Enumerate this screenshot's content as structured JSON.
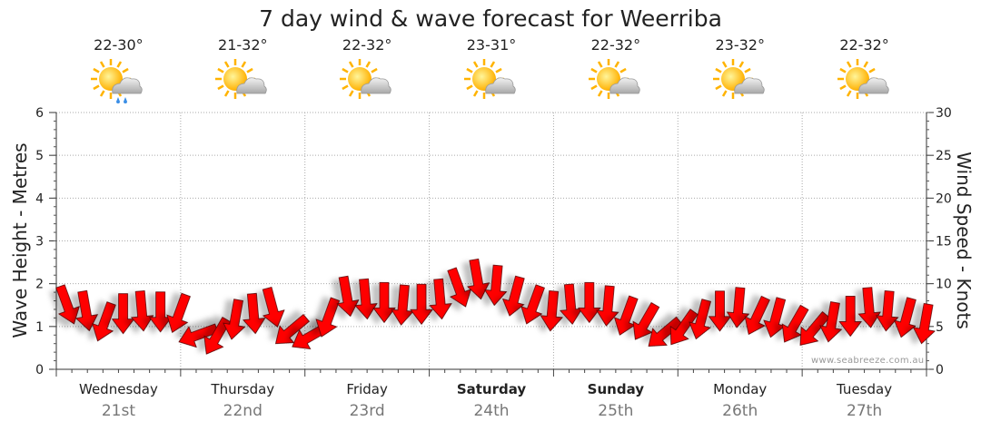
{
  "title": "7 day wind & wave forecast for Weerriba",
  "watermark": "www.seabreeze.com.au",
  "days": [
    {
      "name": "Wednesday",
      "date": "21st",
      "temp": "22-30°",
      "icon": "sun-cloud-rain-icon",
      "bold": false
    },
    {
      "name": "Thursday",
      "date": "22nd",
      "temp": "21-32°",
      "icon": "sun-cloud-icon",
      "bold": false
    },
    {
      "name": "Friday",
      "date": "23rd",
      "temp": "22-32°",
      "icon": "sun-cloud-icon",
      "bold": false
    },
    {
      "name": "Saturday",
      "date": "24th",
      "temp": "23-31°",
      "icon": "sun-cloud-icon",
      "bold": true
    },
    {
      "name": "Sunday",
      "date": "25th",
      "temp": "22-32°",
      "icon": "sun-cloud-icon",
      "bold": true
    },
    {
      "name": "Monday",
      "date": "26th",
      "temp": "23-32°",
      "icon": "sun-cloud-icon",
      "bold": false
    },
    {
      "name": "Tuesday",
      "date": "27th",
      "temp": "22-32°",
      "icon": "sun-cloud-icon",
      "bold": false
    }
  ],
  "chart_data": {
    "type": "line",
    "left_axis": {
      "label": "Wave Height - Metres",
      "min": 0,
      "max": 6,
      "ticks": [
        0,
        1,
        2,
        3,
        4,
        5,
        6
      ]
    },
    "right_axis": {
      "label": "Wind Speed - Knots",
      "min": 0,
      "max": 30,
      "ticks": [
        0,
        5,
        10,
        15,
        20,
        25,
        30
      ]
    },
    "grid": true,
    "series": [
      {
        "name": "Wind Speed",
        "color": "#ff0000",
        "marker": "arrow",
        "x_days": [
          0.0,
          0.15,
          0.3,
          0.45,
          0.6,
          0.75,
          0.9,
          1.05,
          1.2,
          1.35,
          1.5,
          1.65,
          1.8,
          1.95,
          2.1,
          2.25,
          2.4,
          2.55,
          2.7,
          2.85,
          3.0,
          3.15,
          3.3,
          3.45,
          3.6,
          3.75,
          3.9,
          4.05,
          4.2,
          4.35,
          4.5,
          4.65,
          4.8,
          4.95,
          5.1,
          5.25,
          5.4,
          5.55,
          5.7,
          5.85,
          6.0,
          6.15,
          6.3,
          6.45,
          6.6,
          6.75,
          6.9
        ],
        "values": [
          7.5,
          6.8,
          5.5,
          6.5,
          6.8,
          6.7,
          6.5,
          4.0,
          3.8,
          5.8,
          6.5,
          7.2,
          4.5,
          3.8,
          6.0,
          8.5,
          8.2,
          7.8,
          7.5,
          7.6,
          8.2,
          9.5,
          10.5,
          9.8,
          8.5,
          7.5,
          6.8,
          7.6,
          7.8,
          7.4,
          6.2,
          5.5,
          4.2,
          4.8,
          5.8,
          6.8,
          7.2,
          6.2,
          6.0,
          5.2,
          4.6,
          5.5,
          6.2,
          7.2,
          6.8,
          6.0,
          5.3
        ],
        "directions_deg": [
          160,
          170,
          200,
          180,
          175,
          180,
          200,
          250,
          210,
          190,
          175,
          165,
          230,
          240,
          200,
          170,
          175,
          180,
          185,
          180,
          175,
          160,
          170,
          185,
          195,
          200,
          185,
          175,
          180,
          185,
          200,
          210,
          230,
          215,
          195,
          180,
          185,
          205,
          195,
          210,
          220,
          190,
          180,
          175,
          185,
          195,
          190
        ]
      }
    ]
  }
}
